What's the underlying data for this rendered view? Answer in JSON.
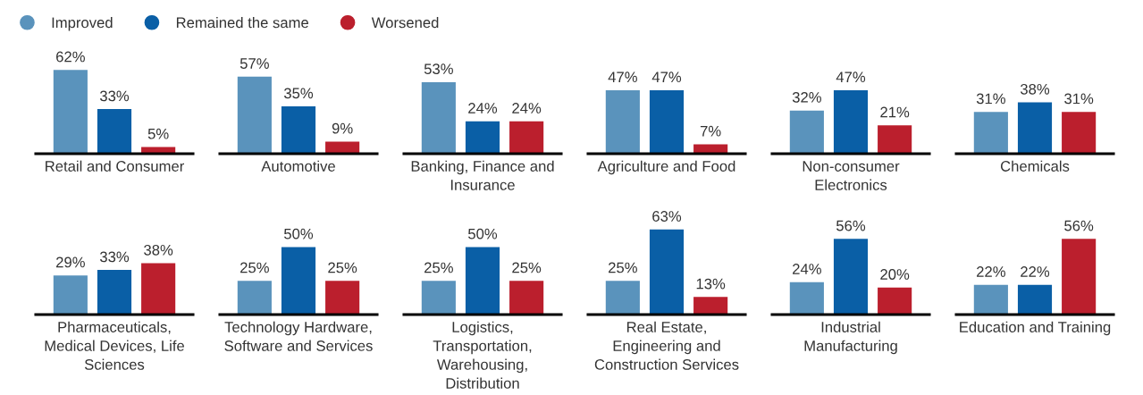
{
  "chart_data": [
    {
      "type": "bar",
      "xlabel": "Retail and Consumer",
      "categories": [
        null
      ],
      "data_labels": false,
      "legend": "top right",
      "series": [
        {
          "name": "Improved",
          "color": "#5a93bc",
          "values": [
            62
          ],
          "value_labels": [
            "62%"
          ]
        },
        {
          "name": "Remained the same",
          "color": "#0a5fa6",
          "values": [
            33
          ],
          "value_labels": [
            "33%"
          ]
        },
        {
          "name": "Worsened",
          "color": "#bb1f2d",
          "values": [
            5
          ],
          "value_labels": [
            "5%"
          ]
        }
      ]
    },
    {
      "type": "bar",
      "xlabel": "Automotive",
      "categories": [
        null
      ],
      "series": [
        {
          "color": "#5a93bc",
          "values": [
            57
          ],
          "value_labels": [
            "57%"
          ]
        },
        {
          "color": "#0a5fa6",
          "values": [
            35
          ],
          "value_labels": [
            "35%"
          ]
        },
        {
          "color": "#bb1f2d",
          "values": [
            9
          ],
          "value_labels": [
            "9%"
          ]
        }
      ]
    },
    {
      "type": "bar",
      "xlabel": "Banking, Finance and Insurance",
      "categories": [
        null
      ],
      "series": [
        {
          "color": "#5a93bc",
          "values": [
            53
          ],
          "value_labels": [
            "53%"
          ]
        },
        {
          "color": "#0a5fa6",
          "values": [
            24
          ],
          "value_labels": [
            "24%"
          ]
        },
        {
          "color": "#bb1f2d",
          "values": [
            24
          ],
          "value_labels": [
            "24%"
          ]
        }
      ]
    },
    {
      "type": "bar",
      "xlabel": "Agriculture and Food",
      "categories": [
        null
      ],
      "series": [
        {
          "color": "#5a93bc",
          "values": [
            47
          ],
          "value_labels": [
            "47%"
          ]
        },
        {
          "color": "#0a5fa6",
          "values": [
            47
          ],
          "value_labels": [
            "47%"
          ]
        },
        {
          "color": "#bb1f2d",
          "values": [
            7
          ],
          "value_labels": [
            "7%"
          ]
        }
      ]
    },
    {
      "type": "bar",
      "xlabel": "Non-consumer Electronics",
      "categories": [
        null
      ],
      "series": [
        {
          "color": "#5a93bc",
          "values": [
            32
          ],
          "value_labels": [
            "32%"
          ]
        },
        {
          "color": "#0a5fa6",
          "values": [
            47
          ],
          "value_labels": [
            "47%"
          ]
        },
        {
          "color": "#bb1f2d",
          "values": [
            21
          ],
          "value_labels": [
            "21%"
          ]
        }
      ]
    },
    {
      "type": "bar",
      "xlabel": "Chemicals",
      "categories": [
        null
      ],
      "series": [
        {
          "color": "#5a93bc",
          "values": [
            31
          ],
          "value_labels": [
            "31%"
          ]
        },
        {
          "color": "#0a5fa6",
          "values": [
            38
          ],
          "value_labels": [
            "38%"
          ]
        },
        {
          "color": "#bb1f2d",
          "values": [
            31
          ],
          "value_labels": [
            "31%"
          ]
        }
      ]
    },
    {
      "type": "bar",
      "xlabel": "Pharmaceuticals, Medical Devices, Life Sciences",
      "categories": [
        null
      ],
      "series": [
        {
          "color": "#5a93bc",
          "values": [
            29
          ],
          "value_labels": [
            "29%"
          ]
        },
        {
          "color": "#0a5fa6",
          "values": [
            33
          ],
          "value_labels": [
            "33%"
          ]
        },
        {
          "color": "#bb1f2d",
          "values": [
            38
          ],
          "value_labels": [
            "38%"
          ]
        }
      ]
    },
    {
      "type": "bar",
      "xlabel": "Technology Hardware, Software and Services",
      "categories": [
        null
      ],
      "series": [
        {
          "color": "#5a93bc",
          "values": [
            25
          ],
          "value_labels": [
            "25%"
          ]
        },
        {
          "color": "#0a5fa6",
          "values": [
            50
          ],
          "value_labels": [
            "50%"
          ]
        },
        {
          "color": "#bb1f2d",
          "values": [
            25
          ],
          "value_labels": [
            "25%"
          ]
        }
      ]
    },
    {
      "type": "bar",
      "xlabel": "Logistics, Transportation, Warehousing, Distribution",
      "categories": [
        null
      ],
      "series": [
        {
          "color": "#5a93bc",
          "values": [
            25
          ],
          "value_labels": [
            "25%"
          ]
        },
        {
          "color": "#0a5fa6",
          "values": [
            50
          ],
          "value_labels": [
            "50%"
          ]
        },
        {
          "color": "#bb1f2d",
          "values": [
            25
          ],
          "value_labels": [
            "25%"
          ]
        }
      ]
    },
    {
      "type": "bar",
      "xlabel": "Real Estate, Engineering and Construction Services",
      "categories": [
        null
      ],
      "series": [
        {
          "color": "#5a93bc",
          "values": [
            25
          ],
          "value_labels": [
            "25%"
          ]
        },
        {
          "color": "#0a5fa6",
          "values": [
            63
          ],
          "value_labels": [
            "63%"
          ]
        },
        {
          "color": "#bb1f2d",
          "values": [
            13
          ],
          "value_labels": [
            "13%"
          ]
        }
      ]
    },
    {
      "type": "bar",
      "xlabel": "Industrial Manufacturing",
      "categories": [
        null
      ],
      "series": [
        {
          "color": "#5a93bc",
          "values": [
            24
          ],
          "value_labels": [
            "24%"
          ]
        },
        {
          "color": "#0a5fa6",
          "values": [
            56
          ],
          "value_labels": [
            "56%"
          ]
        },
        {
          "color": "#bb1f2d",
          "values": [
            20
          ],
          "value_labels": [
            "20%"
          ]
        }
      ]
    },
    {
      "type": "bar",
      "xlabel": "Education and Training",
      "categories": [
        null
      ],
      "series": [
        {
          "color": "#5a93bc",
          "values": [
            22
          ],
          "value_labels": [
            "22%"
          ]
        },
        {
          "color": "#0a5fa6",
          "values": [
            22
          ],
          "value_labels": [
            "22%"
          ]
        },
        {
          "color": "#bb1f2d",
          "values": [
            56
          ],
          "value_labels": [
            "56%"
          ]
        }
      ]
    }
  ]
}
